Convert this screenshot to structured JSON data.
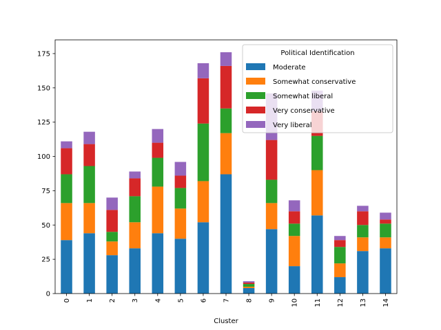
{
  "chart_data": {
    "type": "bar",
    "stacked": true,
    "title": "",
    "xlabel": "Cluster",
    "ylabel": "",
    "ylim": [
      0,
      185
    ],
    "yticks": [
      0,
      25,
      50,
      75,
      100,
      125,
      150,
      175
    ],
    "categories": [
      "0",
      "1",
      "2",
      "3",
      "4",
      "5",
      "6",
      "7",
      "8",
      "9",
      "10",
      "11",
      "12",
      "13",
      "14"
    ],
    "grid": false,
    "legend": {
      "title": "Political Identification",
      "placement": "top-right"
    },
    "series": [
      {
        "name": "Moderate",
        "color": "#1f77b4",
        "values": [
          39,
          44,
          28,
          33,
          44,
          40,
          52,
          87,
          4,
          47,
          20,
          57,
          12,
          31,
          33
        ]
      },
      {
        "name": "Somewhat conservative",
        "color": "#ff7f0e",
        "values": [
          27,
          22,
          10,
          19,
          34,
          22,
          30,
          30,
          1,
          19,
          22,
          33,
          10,
          10,
          8
        ]
      },
      {
        "name": "Somewhat liberal",
        "color": "#2ca02c",
        "values": [
          21,
          27,
          7,
          19,
          21,
          15,
          42,
          18,
          2,
          17,
          9,
          25,
          12,
          9,
          10
        ]
      },
      {
        "name": "Very conservative",
        "color": "#d62728",
        "values": [
          19,
          16,
          16,
          13,
          11,
          9,
          33,
          31,
          1,
          29,
          9,
          18,
          5,
          10,
          3
        ]
      },
      {
        "name": "Very liberal",
        "color": "#9467bd",
        "values": [
          5,
          9,
          9,
          5,
          10,
          10,
          11,
          10,
          1,
          34,
          8,
          15,
          3,
          4,
          5
        ]
      }
    ]
  }
}
